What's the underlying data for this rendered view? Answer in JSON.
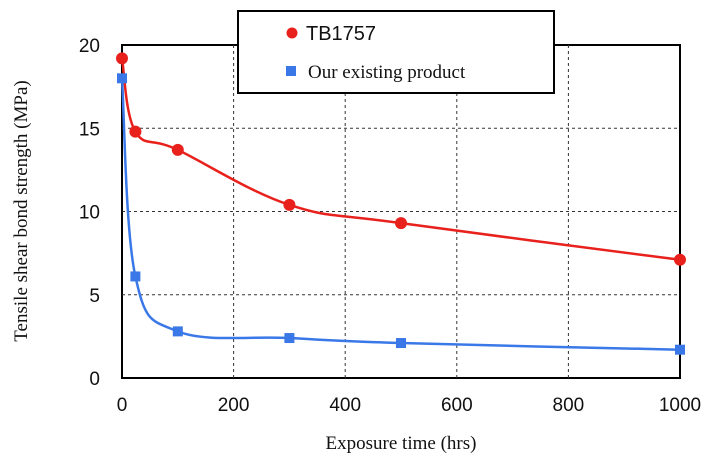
{
  "chart_data": {
    "type": "line",
    "xlabel": "Exposure time (hrs)",
    "ylabel": "Tensile shear bond strength (MPa)",
    "xlim": [
      0,
      1000
    ],
    "ylim": [
      0,
      20
    ],
    "x_ticks": [
      "0",
      "200",
      "400",
      "600",
      "800",
      "1000"
    ],
    "y_ticks": [
      "0",
      "5",
      "10",
      "15",
      "20"
    ],
    "grid": true,
    "legend_position": "top",
    "series": [
      {
        "name": "TB1757",
        "color": "#e8211c",
        "marker": "circle",
        "x": [
          0,
          24,
          100,
          300,
          500,
          1000
        ],
        "y": [
          19.2,
          14.8,
          13.7,
          10.4,
          9.3,
          7.1
        ]
      },
      {
        "name": "Our existing product",
        "color": "#3b78e7",
        "marker": "square",
        "x": [
          0,
          24,
          100,
          300,
          500,
          1000
        ],
        "y": [
          18.0,
          6.1,
          2.8,
          2.4,
          2.1,
          1.7
        ]
      }
    ]
  }
}
